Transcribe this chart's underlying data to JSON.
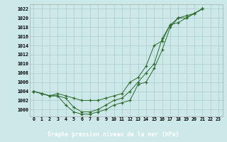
{
  "x": [
    0,
    1,
    2,
    3,
    4,
    5,
    6,
    7,
    8,
    9,
    10,
    11,
    12,
    13,
    14,
    15,
    16,
    17,
    18,
    19,
    20,
    21,
    22,
    23
  ],
  "line1": [
    1004,
    1003.5,
    1003,
    1003,
    1001,
    999.5,
    999,
    999,
    999.5,
    1000,
    1001,
    1001.5,
    1002,
    1005.5,
    1006,
    1009,
    1013,
    1018,
    1020,
    1020,
    1021,
    1022,
    null,
    null
  ],
  "line2": [
    1004,
    1003.5,
    1003,
    1003,
    1002.5,
    1000.5,
    999.5,
    999.5,
    1000,
    1001,
    1002,
    1002.5,
    1004,
    1006,
    1008,
    1010,
    1015.5,
    1018.5,
    1020,
    1020.5,
    1021,
    1022,
    null,
    null
  ],
  "line3": [
    1004,
    1003.5,
    1003,
    1003.5,
    1003,
    1002.5,
    1002,
    1002,
    1002,
    1002.5,
    1003,
    1003.5,
    1006,
    1007,
    1009.5,
    1014,
    1015,
    1018.5,
    1019,
    1020,
    1021,
    1022,
    null,
    null
  ],
  "xlim": [
    -0.5,
    23.5
  ],
  "ylim": [
    998.5,
    1023.0
  ],
  "yticks": [
    1000,
    1002,
    1004,
    1006,
    1008,
    1010,
    1012,
    1014,
    1016,
    1018,
    1020,
    1022
  ],
  "bg_color": "#cce8e8",
  "grid_color": "#aacccc",
  "line_color": "#2d6a2d",
  "xlabel": "Graphe pression niveau de la mer (hPa)",
  "marker": "+",
  "markersize": 3.5,
  "linewidth": 0.7,
  "tick_fontsize": 4.8,
  "xlabel_fontsize": 5.8,
  "xlabel_bg": "#2d6a2d",
  "xlabel_fg": "#ffffff"
}
